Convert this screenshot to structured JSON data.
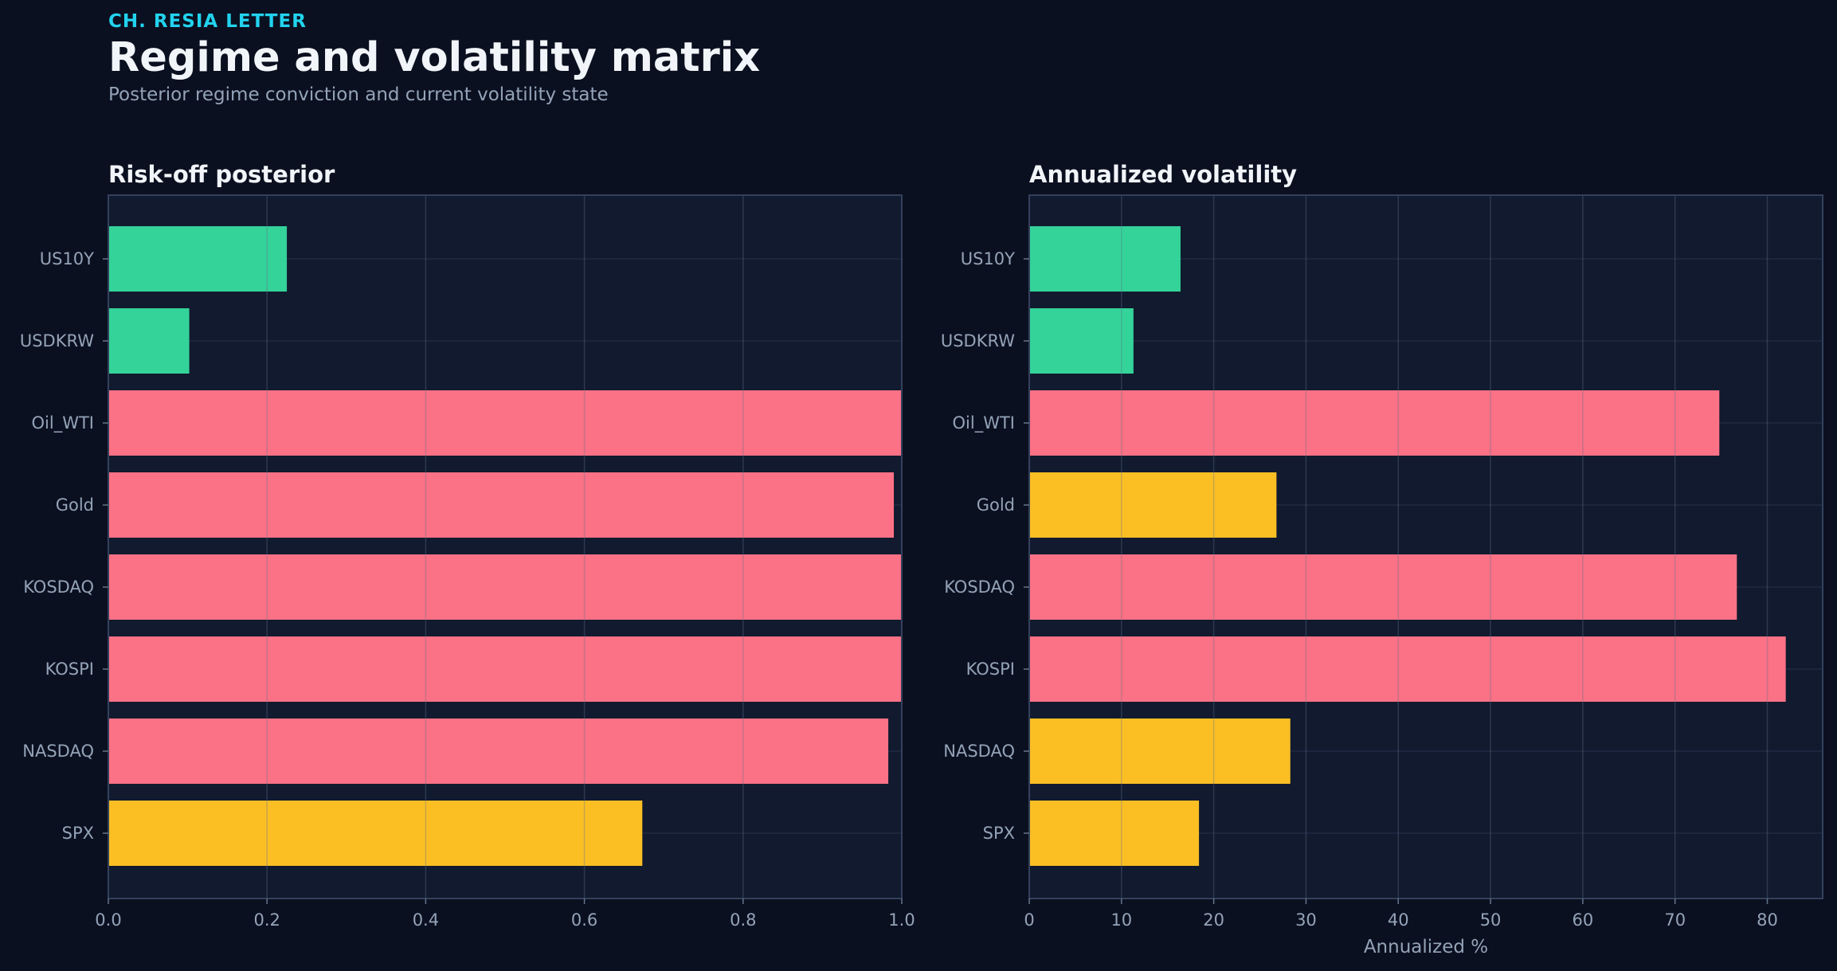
{
  "header": {
    "kicker": "CH. RESIA LETTER",
    "title": "Regime and volatility matrix",
    "subtitle": "Posterior regime conviction and current volatility state"
  },
  "colors": {
    "background": "#0b1020",
    "panel": "#111a2e",
    "green": "#34d399",
    "red": "#fb7185",
    "yellow": "#fbbf24",
    "accent": "#22d3ee"
  },
  "chart_data": [
    {
      "type": "bar",
      "orientation": "horizontal",
      "title": "Risk-off posterior",
      "xlabel": "",
      "ylabel": "",
      "categories": [
        "US10Y",
        "USDKRW",
        "Oil_WTI",
        "Gold",
        "KOSDAQ",
        "KOSPI",
        "NASDAQ",
        "SPX"
      ],
      "values": [
        0.225,
        0.102,
        1.0,
        0.99,
        1.0,
        1.0,
        0.983,
        0.673
      ],
      "bar_colors": [
        "green",
        "green",
        "red",
        "red",
        "red",
        "red",
        "red",
        "yellow"
      ],
      "xlim": [
        0,
        1.0
      ],
      "xticks": [
        "0.0",
        "0.2",
        "0.4",
        "0.6",
        "0.8",
        "1.0"
      ],
      "grid": true
    },
    {
      "type": "bar",
      "orientation": "horizontal",
      "title": "Annualized volatility",
      "xlabel": "Annualized %",
      "ylabel": "",
      "categories": [
        "US10Y",
        "USDKRW",
        "Oil_WTI",
        "Gold",
        "KOSDAQ",
        "KOSPI",
        "NASDAQ",
        "SPX"
      ],
      "values": [
        16.4,
        11.3,
        74.8,
        26.8,
        76.7,
        82.0,
        28.3,
        18.4
      ],
      "bar_colors": [
        "green",
        "green",
        "red",
        "yellow",
        "red",
        "red",
        "yellow",
        "yellow"
      ],
      "xlim": [
        0,
        86
      ],
      "xticks": [
        "0",
        "10",
        "20",
        "30",
        "40",
        "50",
        "60",
        "70",
        "80"
      ],
      "grid": true
    }
  ]
}
